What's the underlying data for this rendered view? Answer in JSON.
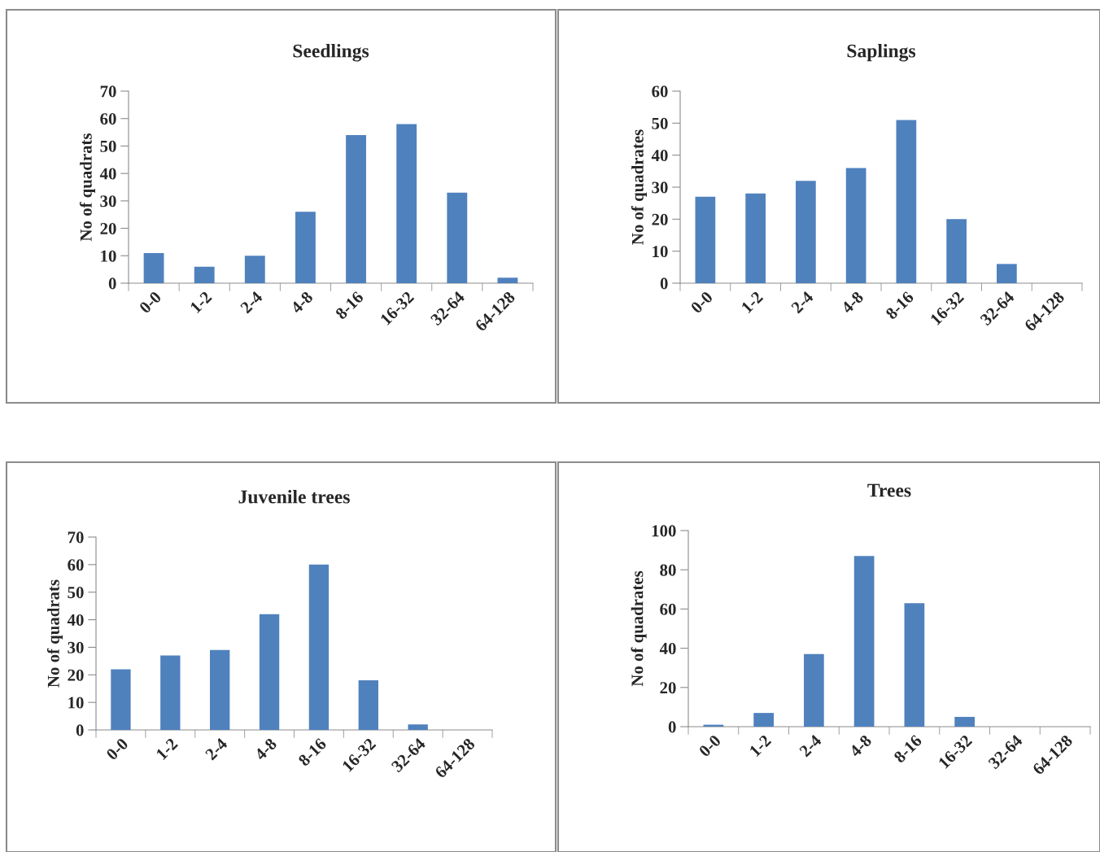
{
  "chart_data": [
    {
      "type": "bar",
      "title": "Seedlings",
      "ylabel": "No of quadrats",
      "categories": [
        "0-0",
        "1-2",
        "2-4",
        "4-8",
        "8-16",
        "16-32",
        "32-64",
        "64-128"
      ],
      "values": [
        11,
        6,
        10,
        26,
        54,
        58,
        33,
        2
      ],
      "color": "#4f81bd",
      "ylim": [
        0,
        70
      ],
      "yticks": [
        0,
        10,
        20,
        30,
        40,
        50,
        60,
        70
      ],
      "grid": false
    },
    {
      "type": "bar",
      "title": "Saplings",
      "ylabel": "No of quadrates",
      "categories": [
        "0-0",
        "1-2",
        "2-4",
        "4-8",
        "8-16",
        "16-32",
        "32-64",
        "64-128"
      ],
      "values": [
        27,
        28,
        32,
        36,
        51,
        20,
        6,
        0
      ],
      "color": "#4f81bd",
      "ylim": [
        0,
        60
      ],
      "yticks": [
        0,
        10,
        20,
        30,
        40,
        50,
        60
      ],
      "grid": false
    },
    {
      "type": "bar",
      "title": "Juvenile trees",
      "ylabel": "No of quadrats",
      "categories": [
        "0-0",
        "1-2",
        "2-4",
        "4-8",
        "8-16",
        "16-32",
        "32-64",
        "64-128"
      ],
      "values": [
        22,
        27,
        29,
        42,
        60,
        18,
        2,
        0
      ],
      "color": "#4f81bd",
      "ylim": [
        0,
        70
      ],
      "yticks": [
        0,
        10,
        20,
        30,
        40,
        50,
        60,
        70
      ],
      "grid": false
    },
    {
      "type": "bar",
      "title": "Trees",
      "ylabel": "No of quadrates",
      "categories": [
        "0-0",
        "1-2",
        "2-4",
        "4-8",
        "8-16",
        "16-32",
        "32-64",
        "64-128"
      ],
      "values": [
        1,
        7,
        37,
        87,
        63,
        5,
        0,
        0
      ],
      "color": "#4f81bd",
      "ylim": [
        0,
        100
      ],
      "yticks": [
        0,
        20,
        40,
        60,
        80,
        100
      ],
      "grid": false
    }
  ]
}
